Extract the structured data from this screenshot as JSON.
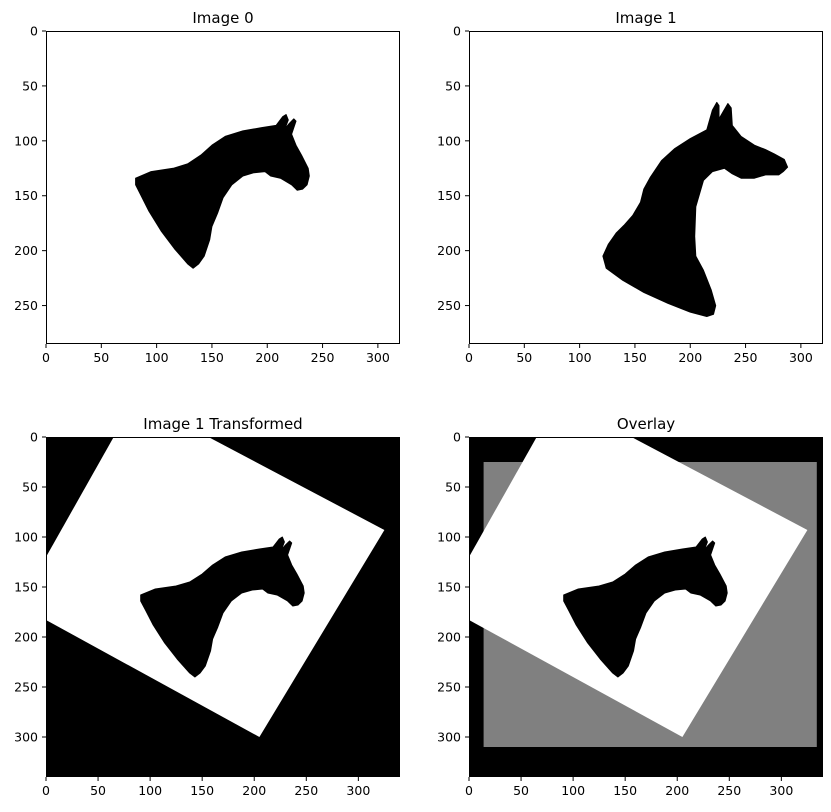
{
  "figure": {
    "background": "#ffffff"
  },
  "chart_data": [
    {
      "type": "image",
      "title": "Image 0",
      "image_size": [
        320,
        285
      ],
      "xlim": [
        0,
        320
      ],
      "ylim": [
        285,
        0
      ],
      "xticks": [
        0,
        50,
        100,
        150,
        200,
        250,
        300
      ],
      "yticks": [
        0,
        50,
        100,
        150,
        200,
        250
      ],
      "content": "black horse head silhouette on white",
      "colors": {
        "background": "#ffffff",
        "shape": "#000000"
      },
      "silhouette": [
        [
          81,
          134
        ],
        [
          95,
          128
        ],
        [
          115,
          125
        ],
        [
          128,
          121
        ],
        [
          140,
          113
        ],
        [
          150,
          104
        ],
        [
          162,
          96
        ],
        [
          178,
          91
        ],
        [
          195,
          88
        ],
        [
          208,
          86
        ],
        [
          214,
          78
        ],
        [
          217,
          76
        ],
        [
          219,
          81
        ],
        [
          216,
          89
        ],
        [
          220,
          84
        ],
        [
          224,
          80
        ],
        [
          226,
          82
        ],
        [
          222,
          94
        ],
        [
          226,
          104
        ],
        [
          231,
          113
        ],
        [
          237,
          125
        ],
        [
          238,
          132
        ],
        [
          236,
          140
        ],
        [
          232,
          144
        ],
        [
          227,
          145
        ],
        [
          222,
          140
        ],
        [
          212,
          134
        ],
        [
          203,
          132
        ],
        [
          198,
          128
        ],
        [
          188,
          129
        ],
        [
          178,
          132
        ],
        [
          168,
          140
        ],
        [
          160,
          152
        ],
        [
          155,
          166
        ],
        [
          150,
          178
        ],
        [
          148,
          190
        ],
        [
          143,
          205
        ],
        [
          138,
          212
        ],
        [
          133,
          216
        ],
        [
          128,
          212
        ],
        [
          116,
          198
        ],
        [
          104,
          182
        ],
        [
          93,
          164
        ],
        [
          86,
          150
        ],
        [
          81,
          140
        ]
      ]
    },
    {
      "type": "image",
      "title": "Image 1",
      "image_size": [
        320,
        285
      ],
      "xlim": [
        0,
        320
      ],
      "ylim": [
        285,
        0
      ],
      "xticks": [
        0,
        50,
        100,
        150,
        200,
        250,
        300
      ],
      "yticks": [
        0,
        50,
        100,
        150,
        200,
        250
      ],
      "content": "black horse head silhouette on white",
      "colors": {
        "background": "#ffffff",
        "shape": "#000000"
      },
      "silhouette": [
        [
          121,
          205
        ],
        [
          126,
          194
        ],
        [
          133,
          184
        ],
        [
          140,
          177
        ],
        [
          148,
          168
        ],
        [
          155,
          156
        ],
        [
          158,
          144
        ],
        [
          164,
          133
        ],
        [
          174,
          118
        ],
        [
          186,
          107
        ],
        [
          200,
          98
        ],
        [
          215,
          90
        ],
        [
          220,
          72
        ],
        [
          224,
          65
        ],
        [
          226,
          68
        ],
        [
          226,
          80
        ],
        [
          230,
          73
        ],
        [
          234,
          66
        ],
        [
          237,
          70
        ],
        [
          238,
          86
        ],
        [
          246,
          96
        ],
        [
          258,
          104
        ],
        [
          268,
          108
        ],
        [
          276,
          112
        ],
        [
          285,
          117
        ],
        [
          288,
          124
        ],
        [
          284,
          128
        ],
        [
          280,
          131
        ],
        [
          268,
          131
        ],
        [
          258,
          134
        ],
        [
          246,
          134
        ],
        [
          238,
          130
        ],
        [
          231,
          125
        ],
        [
          220,
          128
        ],
        [
          212,
          136
        ],
        [
          205,
          160
        ],
        [
          204,
          187
        ],
        [
          205,
          205
        ],
        [
          212,
          218
        ],
        [
          219,
          236
        ],
        [
          223,
          250
        ],
        [
          221,
          258
        ],
        [
          215,
          260
        ],
        [
          200,
          256
        ],
        [
          180,
          248
        ],
        [
          158,
          238
        ],
        [
          139,
          227
        ],
        [
          124,
          216
        ]
      ]
    },
    {
      "type": "image",
      "title": "Image 1 Transformed",
      "image_size": [
        340,
        340
      ],
      "xlim": [
        0,
        340
      ],
      "ylim": [
        340,
        0
      ],
      "xticks": [
        0,
        50,
        100,
        150,
        200,
        250,
        300
      ],
      "yticks": [
        0,
        50,
        100,
        150,
        200,
        250,
        300
      ],
      "content": "rotated white region on black with horse silhouette",
      "colors": {
        "background": "#000000",
        "region": "#ffffff",
        "shape": "#000000"
      },
      "region": [
        [
          0,
          120
        ],
        [
          65,
          0
        ],
        [
          156,
          0
        ],
        [
          325,
          93
        ],
        [
          205,
          300
        ],
        [
          0,
          183
        ]
      ],
      "silhouette": [
        [
          91,
          158
        ],
        [
          105,
          152
        ],
        [
          125,
          149
        ],
        [
          138,
          145
        ],
        [
          150,
          137
        ],
        [
          160,
          128
        ],
        [
          172,
          120
        ],
        [
          188,
          115
        ],
        [
          205,
          112
        ],
        [
          218,
          110
        ],
        [
          224,
          102
        ],
        [
          227,
          100
        ],
        [
          229,
          105
        ],
        [
          226,
          113
        ],
        [
          230,
          108
        ],
        [
          234,
          104
        ],
        [
          236,
          106
        ],
        [
          232,
          118
        ],
        [
          236,
          128
        ],
        [
          241,
          137
        ],
        [
          247,
          149
        ],
        [
          248,
          156
        ],
        [
          246,
          164
        ],
        [
          242,
          168
        ],
        [
          237,
          169
        ],
        [
          232,
          164
        ],
        [
          222,
          158
        ],
        [
          213,
          156
        ],
        [
          208,
          152
        ],
        [
          198,
          153
        ],
        [
          188,
          156
        ],
        [
          178,
          164
        ],
        [
          170,
          176
        ],
        [
          165,
          190
        ],
        [
          160,
          202
        ],
        [
          158,
          214
        ],
        [
          153,
          229
        ],
        [
          148,
          236
        ],
        [
          143,
          240
        ],
        [
          138,
          236
        ],
        [
          126,
          222
        ],
        [
          114,
          206
        ],
        [
          103,
          188
        ],
        [
          96,
          174
        ],
        [
          91,
          164
        ]
      ]
    },
    {
      "type": "image",
      "title": "Overlay",
      "image_size": [
        340,
        340
      ],
      "xlim": [
        0,
        340
      ],
      "ylim": [
        340,
        0
      ],
      "xticks": [
        0,
        50,
        100,
        150,
        200,
        250,
        300
      ],
      "yticks": [
        0,
        50,
        100,
        150,
        200,
        250,
        300
      ],
      "content": "overlay of Image 0 (gray frame) and transformed Image 1",
      "colors": {
        "background": "#000000",
        "frame": "#808080",
        "region": "#ffffff",
        "shape": "#000000"
      },
      "frame": [
        [
          14,
          25
        ],
        [
          334,
          25
        ],
        [
          334,
          310
        ],
        [
          14,
          310
        ]
      ],
      "region": [
        [
          0,
          120
        ],
        [
          65,
          0
        ],
        [
          156,
          0
        ],
        [
          325,
          93
        ],
        [
          205,
          300
        ],
        [
          0,
          183
        ]
      ],
      "silhouette": [
        [
          91,
          158
        ],
        [
          105,
          152
        ],
        [
          125,
          149
        ],
        [
          138,
          145
        ],
        [
          150,
          137
        ],
        [
          160,
          128
        ],
        [
          172,
          120
        ],
        [
          188,
          115
        ],
        [
          205,
          112
        ],
        [
          218,
          110
        ],
        [
          224,
          102
        ],
        [
          227,
          100
        ],
        [
          229,
          105
        ],
        [
          226,
          113
        ],
        [
          230,
          108
        ],
        [
          234,
          104
        ],
        [
          236,
          106
        ],
        [
          232,
          118
        ],
        [
          236,
          128
        ],
        [
          241,
          137
        ],
        [
          247,
          149
        ],
        [
          248,
          156
        ],
        [
          246,
          164
        ],
        [
          242,
          168
        ],
        [
          237,
          169
        ],
        [
          232,
          164
        ],
        [
          222,
          158
        ],
        [
          213,
          156
        ],
        [
          208,
          152
        ],
        [
          198,
          153
        ],
        [
          188,
          156
        ],
        [
          178,
          164
        ],
        [
          170,
          176
        ],
        [
          165,
          190
        ],
        [
          160,
          202
        ],
        [
          158,
          214
        ],
        [
          153,
          229
        ],
        [
          148,
          236
        ],
        [
          143,
          240
        ],
        [
          138,
          236
        ],
        [
          126,
          222
        ],
        [
          114,
          206
        ],
        [
          103,
          188
        ],
        [
          96,
          174
        ],
        [
          91,
          164
        ]
      ]
    }
  ]
}
